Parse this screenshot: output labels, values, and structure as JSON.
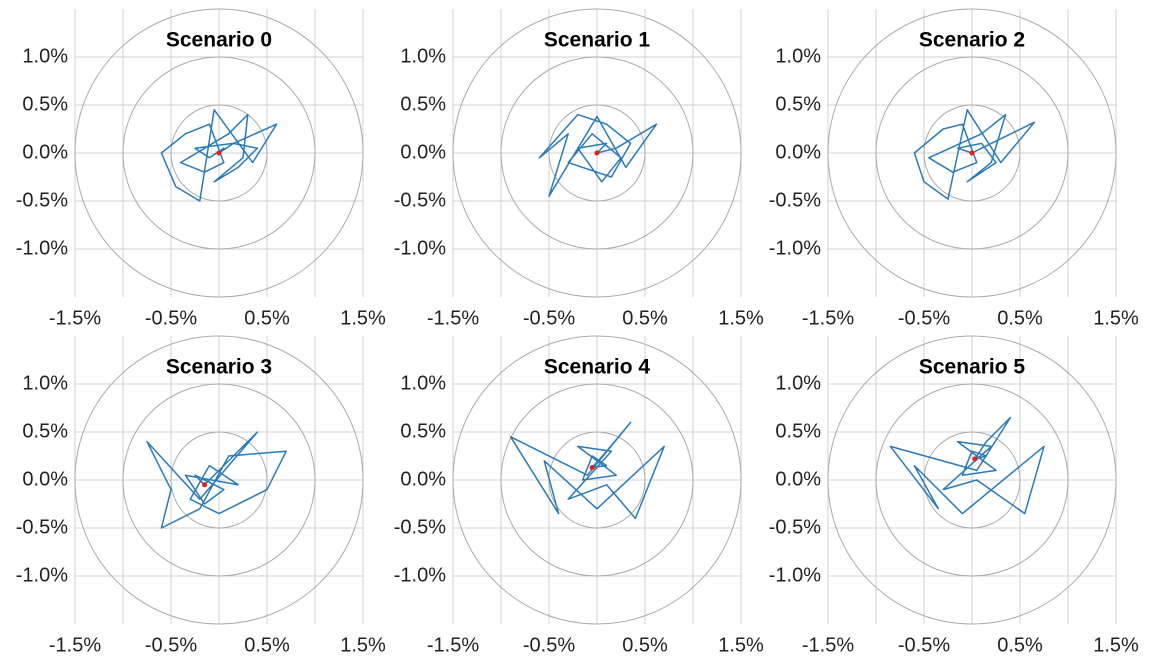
{
  "chart_data": [
    {
      "type": "line",
      "title": "Scenario 0",
      "xlim": [
        -1.5,
        1.5
      ],
      "ylim": [
        -1.5,
        1.5
      ],
      "xticks": [
        {
          "value": -1.5,
          "label": "-1.5%"
        },
        {
          "value": -1.0,
          "label": null
        },
        {
          "value": -0.5,
          "label": "-0.5%"
        },
        {
          "value": 0,
          "label": null
        },
        {
          "value": 0.5,
          "label": "0.5%"
        },
        {
          "value": 1.0,
          "label": null
        },
        {
          "value": 1.5,
          "label": "1.5%"
        }
      ],
      "yticks": [
        {
          "value": -1.0,
          "label": "-1.0%"
        },
        {
          "value": -0.5,
          "label": "-0.5%"
        },
        {
          "value": 0,
          "label": "0.0%"
        },
        {
          "value": 0.5,
          "label": "0.5%"
        },
        {
          "value": 1.0,
          "label": "1.0%"
        }
      ],
      "grid": true,
      "circles": [
        0.5,
        1.0,
        1.5
      ],
      "center": {
        "x": 0,
        "y": 0,
        "color": "#e02020"
      },
      "series": [
        {
          "color": "#2a7ab8",
          "x": [
            0,
            0.15,
            0.6,
            0.35,
            -0.05,
            -0.2,
            -0.45,
            -0.6,
            -0.35,
            -0.1,
            0.05,
            -0.15,
            -0.4,
            0.1,
            0.3,
            0.25,
            -0.05,
            0.2,
            0.4,
            0.15,
            -0.25,
            -0.1,
            0.05,
            0
          ],
          "y": [
            0,
            0.1,
            0.3,
            -0.1,
            0.45,
            -0.5,
            -0.35,
            0,
            0.2,
            0.3,
            -0.1,
            -0.2,
            -0.1,
            0.2,
            0.4,
            -0.05,
            -0.3,
            -0.15,
            0.05,
            0.1,
            0.05,
            -0.05,
            0.05,
            0
          ]
        }
      ]
    },
    {
      "type": "line",
      "title": "Scenario 1",
      "xlim": [
        -1.5,
        1.5
      ],
      "ylim": [
        -1.5,
        1.5
      ],
      "xticks": [
        {
          "value": -1.5,
          "label": "-1.5%"
        },
        {
          "value": -1.0,
          "label": null
        },
        {
          "value": -0.5,
          "label": "-0.5%"
        },
        {
          "value": 0,
          "label": null
        },
        {
          "value": 0.5,
          "label": "0.5%"
        },
        {
          "value": 1.0,
          "label": null
        },
        {
          "value": 1.5,
          "label": "1.5%"
        }
      ],
      "yticks": [
        {
          "value": -1.0,
          "label": "-1.0%"
        },
        {
          "value": -0.5,
          "label": "-0.5%"
        },
        {
          "value": 0,
          "label": "0.0%"
        },
        {
          "value": 0.5,
          "label": "0.5%"
        },
        {
          "value": 1.0,
          "label": "1.0%"
        }
      ],
      "grid": true,
      "circles": [
        0.5,
        1.0,
        1.5
      ],
      "center": {
        "x": 0,
        "y": 0,
        "color": "#e02020"
      },
      "series": [
        {
          "color": "#2a7ab8",
          "x": [
            0,
            0.2,
            0.62,
            0.3,
            0.0,
            -0.5,
            -0.3,
            -0.6,
            -0.2,
            0.1,
            0.35,
            0.15,
            -0.3,
            -0.05,
            0.25,
            0.05,
            -0.2,
            0.1,
            0
          ],
          "y": [
            0,
            0.05,
            0.3,
            -0.15,
            0.38,
            -0.45,
            0.2,
            -0.05,
            0.4,
            0.3,
            0.1,
            -0.25,
            -0.1,
            0.2,
            -0.05,
            -0.3,
            0.05,
            0.1,
            0
          ]
        }
      ]
    },
    {
      "type": "line",
      "title": "Scenario 2",
      "xlim": [
        -1.5,
        1.5
      ],
      "ylim": [
        -1.5,
        1.5
      ],
      "xticks": [
        {
          "value": -1.5,
          "label": "-1.5%"
        },
        {
          "value": -1.0,
          "label": null
        },
        {
          "value": -0.5,
          "label": "-0.5%"
        },
        {
          "value": 0,
          "label": null
        },
        {
          "value": 0.5,
          "label": "0.5%"
        },
        {
          "value": 1.0,
          "label": null
        },
        {
          "value": 1.5,
          "label": "1.5%"
        }
      ],
      "yticks": [
        {
          "value": -1.0,
          "label": "-1.0%"
        },
        {
          "value": -0.5,
          "label": "-0.5%"
        },
        {
          "value": 0,
          "label": "0.0%"
        },
        {
          "value": 0.5,
          "label": "0.5%"
        },
        {
          "value": 1.0,
          "label": "1.0%"
        }
      ],
      "grid": true,
      "circles": [
        0.5,
        1.0,
        1.5
      ],
      "center": {
        "x": 0,
        "y": 0,
        "color": "#e02020"
      },
      "series": [
        {
          "color": "#2a7ab8",
          "x": [
            0,
            0.2,
            0.65,
            0.3,
            -0.05,
            -0.25,
            -0.5,
            -0.6,
            -0.3,
            -0.1,
            0.05,
            -0.2,
            -0.45,
            0.1,
            0.35,
            0.2,
            -0.05,
            0.25,
            0.1,
            -0.15,
            0
          ],
          "y": [
            0,
            0.1,
            0.32,
            -0.1,
            0.45,
            -0.48,
            -0.3,
            0,
            0.25,
            0.3,
            -0.1,
            -0.2,
            -0.05,
            0.2,
            0.4,
            -0.1,
            -0.3,
            -0.1,
            0.1,
            0.05,
            0
          ]
        }
      ]
    },
    {
      "type": "line",
      "title": "Scenario 3",
      "xlim": [
        -1.5,
        1.5
      ],
      "ylim": [
        -1.5,
        1.5
      ],
      "xticks": [
        {
          "value": -1.5,
          "label": "-1.5%"
        },
        {
          "value": -1.0,
          "label": null
        },
        {
          "value": -0.5,
          "label": "-0.5%"
        },
        {
          "value": 0,
          "label": null
        },
        {
          "value": 0.5,
          "label": "0.5%"
        },
        {
          "value": 1.0,
          "label": null
        },
        {
          "value": 1.5,
          "label": "1.5%"
        }
      ],
      "yticks": [
        {
          "value": -1.0,
          "label": "-1.0%"
        },
        {
          "value": -0.5,
          "label": "-0.5%"
        },
        {
          "value": 0,
          "label": "0.0%"
        },
        {
          "value": 0.5,
          "label": "0.5%"
        },
        {
          "value": 1.0,
          "label": "1.0%"
        }
      ],
      "grid": true,
      "circles": [
        0.5,
        1.0,
        1.5
      ],
      "center": {
        "x": -0.15,
        "y": -0.05,
        "color": "#e02020"
      },
      "series": [
        {
          "color": "#2a7ab8",
          "x": [
            -0.15,
            0.0,
            0.4,
            -0.2,
            -0.75,
            -0.5,
            -0.6,
            -0.2,
            0.1,
            0.7,
            0.5,
            0.0,
            -0.3,
            -0.1,
            0.2,
            -0.35,
            -0.15,
            0.05,
            -0.25,
            -0.15
          ],
          "y": [
            -0.05,
            0.1,
            0.5,
            -0.2,
            0.4,
            -0.1,
            -0.5,
            -0.3,
            0.25,
            0.3,
            -0.1,
            -0.35,
            -0.2,
            0.15,
            -0.05,
            0.05,
            -0.25,
            -0.1,
            0.05,
            -0.05
          ]
        }
      ]
    },
    {
      "type": "line",
      "title": "Scenario 4",
      "xlim": [
        -1.5,
        1.5
      ],
      "ylim": [
        -1.5,
        1.5
      ],
      "xticks": [
        {
          "value": -1.5,
          "label": "-1.5%"
        },
        {
          "value": -1.0,
          "label": null
        },
        {
          "value": -0.5,
          "label": "-0.5%"
        },
        {
          "value": 0,
          "label": null
        },
        {
          "value": 0.5,
          "label": "0.5%"
        },
        {
          "value": 1.0,
          "label": null
        },
        {
          "value": 1.5,
          "label": "1.5%"
        }
      ],
      "yticks": [
        {
          "value": -1.0,
          "label": "-1.0%"
        },
        {
          "value": -0.5,
          "label": "-0.5%"
        },
        {
          "value": 0,
          "label": "0.0%"
        },
        {
          "value": 0.5,
          "label": "0.5%"
        },
        {
          "value": 1.0,
          "label": "1.0%"
        }
      ],
      "grid": true,
      "circles": [
        0.5,
        1.0,
        1.5
      ],
      "center": {
        "x": -0.05,
        "y": 0.13,
        "color": "#e02020"
      },
      "series": [
        {
          "color": "#2a7ab8",
          "x": [
            -0.05,
            0.1,
            0.35,
            -0.1,
            -0.9,
            -0.4,
            -0.55,
            0.0,
            0.7,
            0.4,
            0.1,
            -0.3,
            0.15,
            -0.2,
            0.2,
            -0.15,
            -0.05,
            0.1,
            -0.05
          ],
          "y": [
            0.13,
            0.3,
            0.6,
            0.05,
            0.45,
            -0.35,
            0.2,
            -0.3,
            0.35,
            -0.4,
            -0.05,
            -0.2,
            0.3,
            0.35,
            0.05,
            0.0,
            0.25,
            0.15,
            0.13
          ]
        }
      ]
    },
    {
      "type": "line",
      "title": "Scenario 5",
      "xlim": [
        -1.5,
        1.5
      ],
      "ylim": [
        -1.5,
        1.5
      ],
      "xticks": [
        {
          "value": -1.5,
          "label": "-1.5%"
        },
        {
          "value": -1.0,
          "label": null
        },
        {
          "value": -0.5,
          "label": "-0.5%"
        },
        {
          "value": 0,
          "label": null
        },
        {
          "value": 0.5,
          "label": "0.5%"
        },
        {
          "value": 1.0,
          "label": null
        },
        {
          "value": 1.5,
          "label": "1.5%"
        }
      ],
      "yticks": [
        {
          "value": -1.0,
          "label": "-1.0%"
        },
        {
          "value": -0.5,
          "label": "-0.5%"
        },
        {
          "value": 0,
          "label": "0.0%"
        },
        {
          "value": 0.5,
          "label": "0.5%"
        },
        {
          "value": 1.0,
          "label": "1.0%"
        }
      ],
      "grid": true,
      "circles": [
        0.5,
        1.0,
        1.5
      ],
      "center": {
        "x": 0.03,
        "y": 0.22,
        "color": "#e02020"
      },
      "series": [
        {
          "color": "#2a7ab8",
          "x": [
            0.03,
            0.15,
            0.4,
            0.05,
            -0.85,
            -0.35,
            -0.6,
            -0.1,
            0.75,
            0.55,
            0.05,
            -0.3,
            0.2,
            -0.15,
            0.25,
            -0.1,
            0.0,
            0.15,
            0.03
          ],
          "y": [
            0.22,
            0.4,
            0.65,
            0.1,
            0.35,
            -0.3,
            0.15,
            -0.35,
            0.35,
            -0.35,
            0.0,
            -0.1,
            0.35,
            0.4,
            0.1,
            0.05,
            0.3,
            0.25,
            0.22
          ]
        }
      ]
    }
  ]
}
